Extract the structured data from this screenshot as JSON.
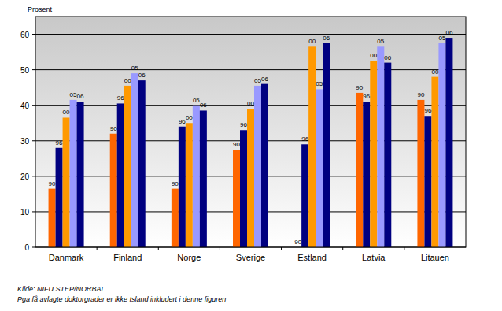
{
  "chart_data": {
    "type": "bar",
    "y_label": "Prosent",
    "footnotes": [
      "Kilde: NIFU STEP/NORBAL",
      "Pga få avlagte doktorgrader er ikke Island inkludert i denne figuren"
    ],
    "categories": [
      "Danmark",
      "Finland",
      "Norge",
      "Sverige",
      "Estland",
      "Latvia",
      "Litauen"
    ],
    "series": [
      {
        "name": "90",
        "color": "#ff6600",
        "values": [
          16.5,
          32,
          16.5,
          27.5,
          0,
          43.5,
          41.5
        ]
      },
      {
        "name": "96",
        "color": "#000080",
        "values": [
          28,
          40.5,
          34,
          33,
          29,
          41,
          37
        ]
      },
      {
        "name": "00",
        "color": "#ff9900",
        "values": [
          36.5,
          45.5,
          35,
          39,
          56.5,
          52.5,
          48
        ]
      },
      {
        "name": "05",
        "color": "#9999ff",
        "values": [
          41.5,
          49,
          40,
          45.5,
          44.5,
          56.5,
          57.5
        ]
      },
      {
        "name": "06",
        "color": "#000080",
        "values": [
          41,
          47,
          38.5,
          46,
          57.5,
          52,
          59
        ]
      }
    ],
    "ylim": [
      0,
      65
    ],
    "yticks": [
      0,
      10,
      20,
      30,
      40,
      50,
      60
    ],
    "grid": true
  }
}
